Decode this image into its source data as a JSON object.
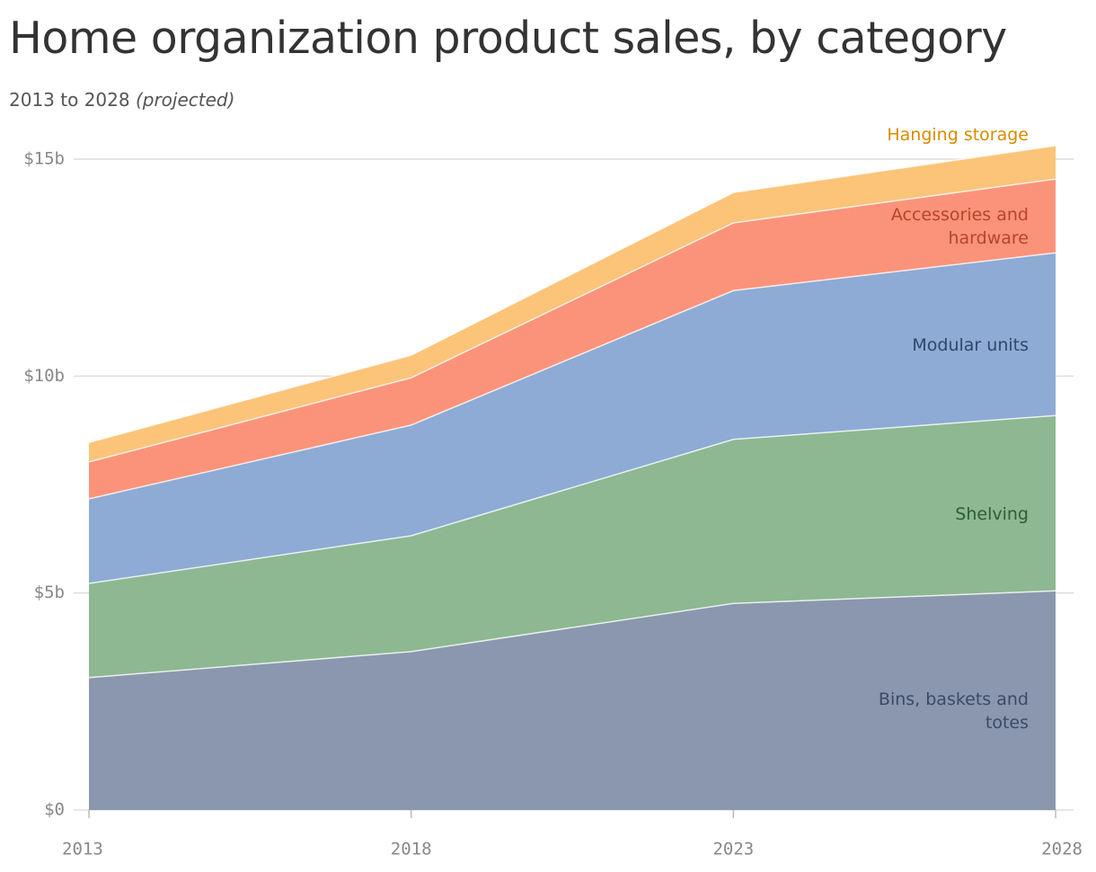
{
  "chart_data": {
    "type": "stacked-area",
    "title": "Home organization product sales, by category",
    "subtitle": "2013 to 2028",
    "subtitle_note": "(projected)",
    "x": [
      2013,
      2018,
      2023,
      2028
    ],
    "series": [
      {
        "name": "Bins, baskets and totes",
        "color": "#8a97ae",
        "label_color": "#3d4a66",
        "values": [
          3.05,
          3.65,
          4.76,
          5.05
        ]
      },
      {
        "name": "Shelving",
        "color": "#8db891",
        "label_color": "#2e5e32",
        "values": [
          2.17,
          2.67,
          3.78,
          4.04
        ]
      },
      {
        "name": "Modular units",
        "color": "#8dabd4",
        "label_color": "#2c4770",
        "values": [
          1.95,
          2.55,
          3.43,
          3.75
        ]
      },
      {
        "name": "Accessories and hardware",
        "color": "#fb937a",
        "label_color": "#b8432b",
        "values": [
          0.85,
          1.09,
          1.56,
          1.7
        ]
      },
      {
        "name": "Hanging storage",
        "color": "#fcc478",
        "label_color": "#d98a00",
        "values": [
          0.45,
          0.52,
          0.7,
          0.77
        ]
      }
    ],
    "xlim": [
      2013,
      2028
    ],
    "xticks": [
      2013,
      2018,
      2023,
      2028
    ],
    "ylim": [
      0,
      15
    ],
    "yticks": [
      {
        "value": 0,
        "label": "$0"
      },
      {
        "value": 5,
        "label": "$5b"
      },
      {
        "value": 10,
        "label": "$10b"
      },
      {
        "value": 15,
        "label": "$15b"
      }
    ],
    "grid": true
  }
}
